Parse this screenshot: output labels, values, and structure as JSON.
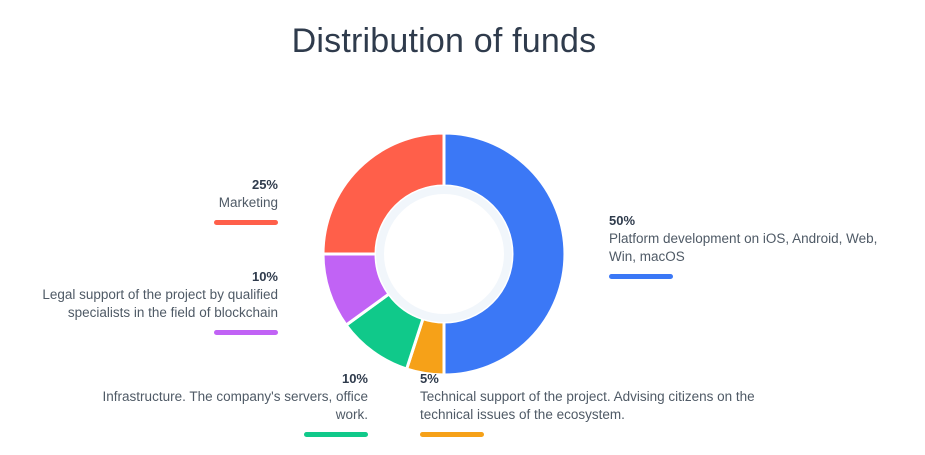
{
  "title": "Distribution of funds",
  "chart_data": {
    "type": "pie",
    "title": "Distribution of funds",
    "donut": true,
    "slices": [
      {
        "label": "Platform development on iOS, Android, Web, Win, macOS",
        "value": 50,
        "value_label": "50%",
        "color": "#3b78f6"
      },
      {
        "label": "Technical support of the project. Advising citizens on the technical issues of the ecosystem.",
        "value": 5,
        "value_label": "5%",
        "color": "#f6a118"
      },
      {
        "label": "Infrastructure. The company's servers, office work.",
        "value": 10,
        "value_label": "10%",
        "color": "#10c98a"
      },
      {
        "label": "Legal support of the project by qualified specialists in the field of blockchain",
        "value": 10,
        "value_label": "10%",
        "color": "#c163f5"
      },
      {
        "label": "Marketing",
        "value": 25,
        "value_label": "25%",
        "color": "#ff5f4a"
      }
    ]
  }
}
